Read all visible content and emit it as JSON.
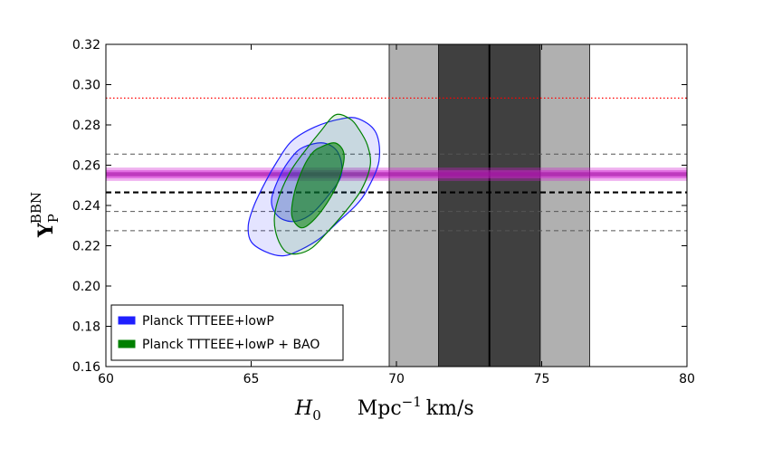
{
  "chart_data": {
    "type": "contour",
    "xlabel_symbol": "H",
    "xlabel_sub": "0",
    "xlabel_units": "Mpc",
    "xlabel_units_exp": "−1",
    "xlabel_units_tail": "km/s",
    "ylabel_symbol": "Y",
    "ylabel_sub": "P",
    "ylabel_sup": "BBN",
    "xlim": [
      60,
      80
    ],
    "ylim": [
      0.16,
      0.32
    ],
    "xticks": [
      60,
      65,
      70,
      75,
      80
    ],
    "xtick_labels": [
      "60",
      "65",
      "70",
      "75",
      "80"
    ],
    "yticks": [
      0.16,
      0.18,
      0.2,
      0.22,
      0.24,
      0.26,
      0.28,
      0.3,
      0.32
    ],
    "ytick_labels": [
      "0.16",
      "0.18",
      "0.20",
      "0.22",
      "0.24",
      "0.26",
      "0.28",
      "0.30",
      "0.32"
    ],
    "h0_measurement": {
      "center": 73.2,
      "sigma1": [
        71.45,
        74.95
      ],
      "sigma2": [
        69.75,
        76.65
      ]
    },
    "yp_band": {
      "center": 0.2555,
      "sigma1": [
        0.2545,
        0.2565
      ],
      "sigma2": [
        0.2535,
        0.2575
      ],
      "sigma3": [
        0.2522,
        0.2588
      ],
      "color": "#d21ed2"
    },
    "hlines": [
      {
        "y": 0.2933,
        "style": "red-dotted",
        "color": "#ff0000"
      },
      {
        "y": 0.2655,
        "style": "grey-dashed",
        "color": "#555555"
      },
      {
        "y": 0.2465,
        "style": "black-thick-dashed",
        "color": "#000000"
      },
      {
        "y": 0.237,
        "style": "grey-dashed",
        "color": "#555555"
      },
      {
        "y": 0.2275,
        "style": "grey-dashed",
        "color": "#555555"
      }
    ],
    "series": [
      {
        "name": "Planck TTTEEE+lowP",
        "color": "#1f1fff",
        "contour_2sigma": [
          [
            68.1,
            0.283
          ],
          [
            68.7,
            0.283
          ],
          [
            69.3,
            0.276
          ],
          [
            69.4,
            0.262
          ],
          [
            69.0,
            0.248
          ],
          [
            68.6,
            0.24
          ],
          [
            68.0,
            0.232
          ],
          [
            67.4,
            0.224
          ],
          [
            66.7,
            0.218
          ],
          [
            66.1,
            0.215
          ],
          [
            65.5,
            0.217
          ],
          [
            65.0,
            0.222
          ],
          [
            64.9,
            0.23
          ],
          [
            65.1,
            0.24
          ],
          [
            65.5,
            0.252
          ],
          [
            65.9,
            0.262
          ],
          [
            66.4,
            0.272
          ],
          [
            67.2,
            0.279
          ]
        ],
        "contour_1sigma": [
          [
            66.8,
            0.269
          ],
          [
            67.5,
            0.271
          ],
          [
            68.0,
            0.266
          ],
          [
            68.1,
            0.255
          ],
          [
            67.6,
            0.244
          ],
          [
            67.0,
            0.235
          ],
          [
            66.4,
            0.232
          ],
          [
            65.9,
            0.235
          ],
          [
            65.7,
            0.243
          ],
          [
            66.0,
            0.255
          ],
          [
            66.4,
            0.264
          ]
        ]
      },
      {
        "name": "Planck TTTEEE+lowP + BAO",
        "color": "#008000",
        "contour_2sigma": [
          [
            67.9,
            0.285
          ],
          [
            68.4,
            0.283
          ],
          [
            68.7,
            0.278
          ],
          [
            69.0,
            0.27
          ],
          [
            69.1,
            0.26
          ],
          [
            68.8,
            0.248
          ],
          [
            68.3,
            0.238
          ],
          [
            67.7,
            0.228
          ],
          [
            67.1,
            0.219
          ],
          [
            66.6,
            0.216
          ],
          [
            66.2,
            0.217
          ],
          [
            65.9,
            0.224
          ],
          [
            65.8,
            0.234
          ],
          [
            66.0,
            0.246
          ],
          [
            66.4,
            0.258
          ],
          [
            66.9,
            0.268
          ],
          [
            67.4,
            0.277
          ]
        ],
        "contour_1sigma": [
          [
            67.4,
            0.269
          ],
          [
            67.9,
            0.271
          ],
          [
            68.2,
            0.265
          ],
          [
            68.0,
            0.252
          ],
          [
            67.6,
            0.241
          ],
          [
            67.1,
            0.232
          ],
          [
            66.7,
            0.229
          ],
          [
            66.4,
            0.235
          ],
          [
            66.5,
            0.247
          ],
          [
            66.8,
            0.259
          ],
          [
            67.1,
            0.266
          ]
        ]
      }
    ],
    "legend": {
      "position": "lower-left",
      "entries": [
        {
          "label": "Planck TTTEEE+lowP",
          "color": "#1f1fff"
        },
        {
          "label": "Planck TTTEEE+lowP + BAO",
          "color": "#008000"
        }
      ]
    }
  }
}
